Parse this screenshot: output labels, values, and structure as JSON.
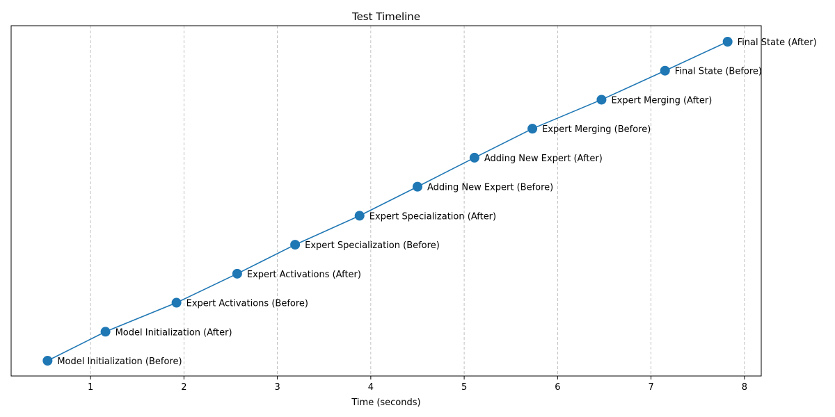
{
  "chart_data": {
    "type": "line",
    "title": "Test Timeline",
    "xlabel": "Time (seconds)",
    "ylabel": "",
    "xlim": [
      0.15,
      8.18
    ],
    "xticks": [
      1,
      2,
      3,
      4,
      5,
      6,
      7,
      8
    ],
    "grid": "x-dashed",
    "series_color": "#1f77b4",
    "points": [
      {
        "x": 0.54,
        "label": "Model Initialization (Before)"
      },
      {
        "x": 1.16,
        "label": "Model Initialization (After)"
      },
      {
        "x": 1.92,
        "label": "Expert Activations (Before)"
      },
      {
        "x": 2.57,
        "label": "Expert Activations (After)"
      },
      {
        "x": 3.19,
        "label": "Expert Specialization (Before)"
      },
      {
        "x": 3.88,
        "label": "Expert Specialization (After)"
      },
      {
        "x": 4.5,
        "label": "Adding New Expert (Before)"
      },
      {
        "x": 5.11,
        "label": "Adding New Expert (After)"
      },
      {
        "x": 5.73,
        "label": "Expert Merging (Before)"
      },
      {
        "x": 6.47,
        "label": "Expert Merging (After)"
      },
      {
        "x": 7.15,
        "label": "Final State (Before)"
      },
      {
        "x": 7.82,
        "label": "Final State (After)"
      }
    ]
  }
}
